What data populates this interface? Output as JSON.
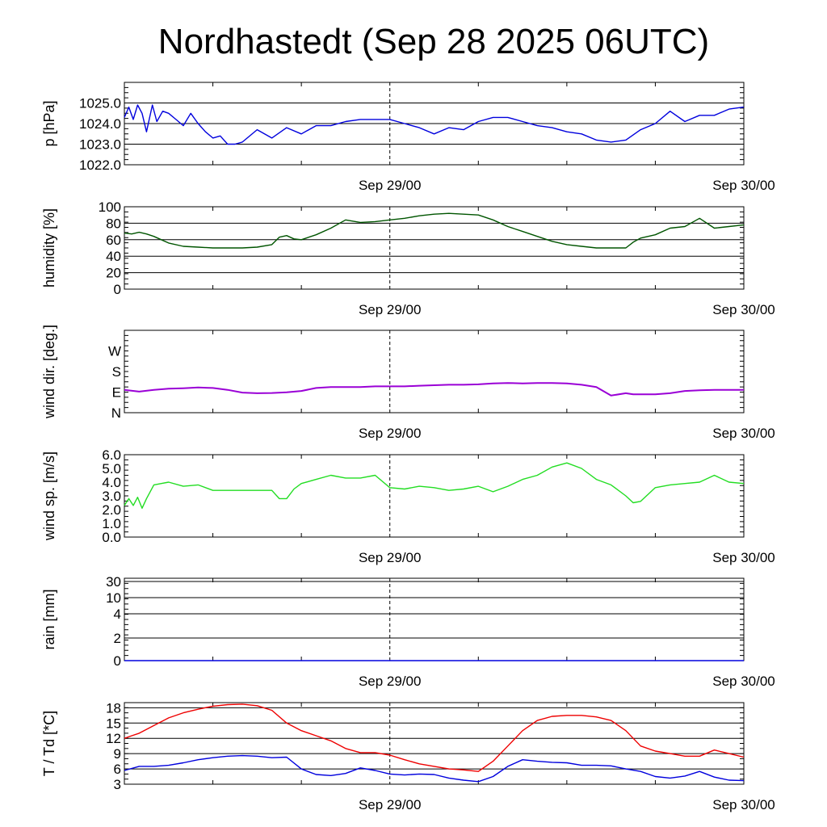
{
  "title": "Nordhastedt (Sep 28 2025 06UTC)",
  "colors": {
    "pressure": "#0000dd",
    "humidity": "#005500",
    "wind_dir": "#9a00d6",
    "wind_speed": "#22dd22",
    "temperature": "#ee0000",
    "dewpoint": "#0000dd"
  },
  "chart_data": [
    {
      "type": "line",
      "ylabel": "p [hPa]",
      "ylim": [
        1022.0,
        1026.0
      ],
      "yticks": [
        1022.0,
        1023.0,
        1024.0,
        1025.0
      ],
      "ytick_labels": [
        "1022.0",
        "1023.0",
        "1024.0",
        "1025.0"
      ],
      "grid": [
        1023.0,
        1024.0,
        1025.0
      ],
      "xlim": [
        "Sep 28/06",
        "Sep 30/00"
      ],
      "xtick_labels": [
        "Sep 29/00",
        "Sep 30/00"
      ],
      "series": [
        {
          "x": [
            6,
            6.3,
            6.6,
            6.9,
            7.2,
            7.5,
            7.9,
            8.2,
            8.6,
            9,
            9.5,
            10,
            10.5,
            11,
            11.5,
            12,
            12.5,
            13,
            13.5,
            14,
            15,
            16,
            17,
            18,
            19,
            20,
            21,
            22,
            23,
            24,
            25,
            26,
            27,
            28,
            29,
            30,
            31,
            32,
            33,
            34,
            35,
            36,
            37,
            38,
            39,
            40,
            41,
            42,
            43,
            44,
            45,
            46,
            47,
            48
          ],
          "y": [
            1024.3,
            1024.8,
            1024.2,
            1024.9,
            1024.5,
            1023.6,
            1024.9,
            1024.1,
            1024.6,
            1024.5,
            1024.2,
            1023.9,
            1024.5,
            1024.0,
            1023.6,
            1023.3,
            1023.4,
            1023.0,
            1023.0,
            1023.1,
            1023.7,
            1023.3,
            1023.8,
            1023.5,
            1023.9,
            1023.9,
            1024.1,
            1024.2,
            1024.2,
            1024.2,
            1024.0,
            1023.8,
            1023.5,
            1023.8,
            1023.7,
            1024.1,
            1024.3,
            1024.3,
            1024.1,
            1023.9,
            1023.8,
            1023.6,
            1023.5,
            1023.2,
            1023.1,
            1023.2,
            1023.7,
            1024.0,
            1024.6,
            1024.1,
            1024.4,
            1024.4,
            1024.7,
            1024.8
          ]
        }
      ]
    },
    {
      "type": "line",
      "ylabel": "humidity [%]",
      "ylim": [
        0,
        100
      ],
      "yticks": [
        0,
        20,
        40,
        60,
        80,
        100
      ],
      "ytick_labels": [
        "0",
        "20",
        "40",
        "60",
        "80",
        "100"
      ],
      "grid": [
        20,
        40,
        60,
        80
      ],
      "xlim": [
        "Sep 28/06",
        "Sep 30/00"
      ],
      "xtick_labels": [
        "Sep 29/00",
        "Sep 30/00"
      ],
      "series": [
        {
          "x": [
            6,
            6.5,
            7,
            7.5,
            8,
            8.5,
            9,
            10,
            11,
            12,
            13,
            14,
            15,
            16,
            16.5,
            17,
            17.5,
            18,
            19,
            20,
            21,
            22,
            23,
            24,
            25,
            26,
            27,
            28,
            29,
            30,
            31,
            32,
            33,
            34,
            35,
            36,
            37,
            38,
            39,
            40,
            40.5,
            41,
            42,
            43,
            44,
            45,
            46,
            47,
            48
          ],
          "y": [
            68,
            67,
            69,
            67,
            64,
            60,
            56,
            52,
            51,
            50,
            50,
            50,
            51,
            54,
            63,
            65,
            61,
            60,
            66,
            74,
            84,
            81,
            82,
            84,
            86,
            89,
            91,
            92,
            91,
            90,
            84,
            76,
            70,
            64,
            58,
            54,
            52,
            50,
            50,
            50,
            57,
            62,
            66,
            74,
            76,
            86,
            74,
            76,
            78
          ]
        }
      ]
    },
    {
      "type": "line",
      "ylabel": "wind dir. [deg.]",
      "ylim": [
        0,
        360
      ],
      "yticks": [
        0,
        90,
        180,
        270
      ],
      "ytick_labels": [
        "N",
        "E",
        "S",
        "W"
      ],
      "grid": [],
      "xlim": [
        "Sep 28/06",
        "Sep 30/00"
      ],
      "xtick_labels": [
        "Sep 29/00",
        "Sep 30/00"
      ],
      "series": [
        {
          "x": [
            6,
            7,
            8,
            9,
            10,
            11,
            12,
            13,
            14,
            15,
            16,
            17,
            18,
            19,
            20,
            21,
            22,
            23,
            24,
            25,
            26,
            27,
            28,
            29,
            30,
            31,
            32,
            33,
            34,
            35,
            36,
            37,
            38,
            39,
            40,
            40.5,
            41,
            41.5,
            42,
            43,
            44,
            45,
            46,
            47,
            48
          ],
          "y": [
            100,
            92,
            100,
            105,
            107,
            110,
            108,
            100,
            88,
            85,
            86,
            89,
            95,
            108,
            112,
            112,
            112,
            115,
            115,
            115,
            118,
            120,
            122,
            122,
            124,
            128,
            130,
            128,
            130,
            130,
            128,
            122,
            112,
            75,
            85,
            80,
            80,
            80,
            80,
            85,
            95,
            98,
            100,
            100,
            100
          ]
        }
      ]
    },
    {
      "type": "line",
      "ylabel": "wind sp. [m/s]",
      "ylim": [
        0,
        6.0
      ],
      "yticks": [
        0,
        1,
        2,
        3,
        4,
        5,
        6
      ],
      "ytick_labels": [
        "0.0",
        "1.0",
        "2.0",
        "3.0",
        "4.0",
        "5.0",
        "6.0"
      ],
      "grid": [],
      "xlim": [
        "Sep 28/06",
        "Sep 30/00"
      ],
      "xtick_labels": [
        "Sep 29/00",
        "Sep 30/00"
      ],
      "series": [
        {
          "x": [
            6,
            6.3,
            6.6,
            6.9,
            7.2,
            7.5,
            8,
            8.5,
            9,
            10,
            11,
            12,
            13,
            14,
            15,
            16,
            16.5,
            17,
            17.5,
            18,
            19,
            20,
            21,
            22,
            23,
            24,
            25,
            26,
            27,
            28,
            29,
            30,
            31,
            32,
            33,
            34,
            35,
            36,
            37,
            38,
            39,
            40,
            40.5,
            41,
            42,
            43,
            44,
            45,
            46,
            47,
            48
          ],
          "y": [
            2.3,
            2.8,
            2.3,
            2.9,
            2.1,
            2.8,
            3.8,
            3.9,
            4.0,
            3.7,
            3.8,
            3.4,
            3.4,
            3.4,
            3.4,
            3.4,
            2.8,
            2.8,
            3.5,
            3.9,
            4.2,
            4.5,
            4.3,
            4.3,
            4.5,
            3.6,
            3.5,
            3.7,
            3.6,
            3.4,
            3.5,
            3.7,
            3.3,
            3.7,
            4.2,
            4.5,
            5.1,
            5.4,
            5.0,
            4.2,
            3.8,
            3.0,
            2.5,
            2.6,
            3.6,
            3.8,
            3.9,
            4.0,
            4.5,
            4.0,
            3.9
          ]
        }
      ]
    },
    {
      "type": "line",
      "ylabel": "rain [mm]",
      "yticks": [
        0,
        2,
        4,
        10,
        30
      ],
      "ytick_labels": [
        "0",
        "2",
        "4",
        "10",
        "30"
      ],
      "grid": [
        2,
        4,
        10,
        30
      ],
      "xlim": [
        "Sep 28/06",
        "Sep 30/00"
      ],
      "xtick_labels": [
        "Sep 29/00",
        "Sep 30/00"
      ],
      "series": [
        {
          "x": [
            6,
            48
          ],
          "y": [
            0,
            0
          ]
        }
      ]
    },
    {
      "type": "line",
      "ylabel": "T / Td [*C]",
      "ylim": [
        3,
        19
      ],
      "yticks": [
        3,
        6,
        9,
        12,
        15,
        18
      ],
      "ytick_labels": [
        "3",
        "6",
        "9",
        "12",
        "15",
        "18"
      ],
      "grid": [
        6,
        9,
        12,
        15,
        18
      ],
      "xlim": [
        "Sep 28/06",
        "Sep 30/00"
      ],
      "xtick_labels": [
        "Sep 29/00",
        "Sep 30/00"
      ],
      "series": [
        {
          "x": [
            6,
            6.5,
            7,
            8,
            9,
            10,
            11,
            12,
            13,
            14,
            15,
            16,
            17,
            18,
            19,
            20,
            21,
            22,
            23,
            24,
            25,
            26,
            27,
            28,
            29,
            30,
            31,
            32,
            33,
            34,
            35,
            36,
            37,
            38,
            39,
            40,
            41,
            42,
            43,
            44,
            45,
            46,
            47,
            48
          ],
          "y": [
            12,
            12.5,
            13,
            14.5,
            16,
            17,
            17.7,
            18.3,
            18.6,
            18.7,
            18.4,
            17.5,
            15.0,
            13.5,
            12.5,
            11.5,
            10.0,
            9.2,
            9.2,
            8.7,
            7.8,
            7.0,
            6.5,
            6.0,
            5.8,
            5.5,
            7.5,
            10.5,
            13.5,
            15.5,
            16.3,
            16.5,
            16.5,
            16.2,
            15.5,
            13.5,
            10.5,
            9.5,
            9.0,
            8.5,
            8.5,
            9.7,
            9.0,
            8.3
          ]
        },
        {
          "x": [
            6,
            7,
            8,
            9,
            10,
            11,
            12,
            13,
            14,
            15,
            16,
            17,
            18,
            19,
            20,
            21,
            22,
            23,
            24,
            25,
            26,
            27,
            28,
            29,
            30,
            31,
            32,
            33,
            34,
            35,
            36,
            37,
            38,
            39,
            40,
            41,
            42,
            43,
            44,
            45,
            46,
            47,
            48
          ],
          "y": [
            5.7,
            6.5,
            6.5,
            6.7,
            7.2,
            7.8,
            8.2,
            8.5,
            8.6,
            8.5,
            8.2,
            8.3,
            6.0,
            4.9,
            4.7,
            5.1,
            6.2,
            5.7,
            5.0,
            4.8,
            5.0,
            4.9,
            4.2,
            3.8,
            3.5,
            4.5,
            6.5,
            7.8,
            7.5,
            7.3,
            7.2,
            6.7,
            6.7,
            6.6,
            6.0,
            5.5,
            4.5,
            4.2,
            4.6,
            5.5,
            4.4,
            3.8,
            3.7
          ]
        }
      ]
    }
  ]
}
